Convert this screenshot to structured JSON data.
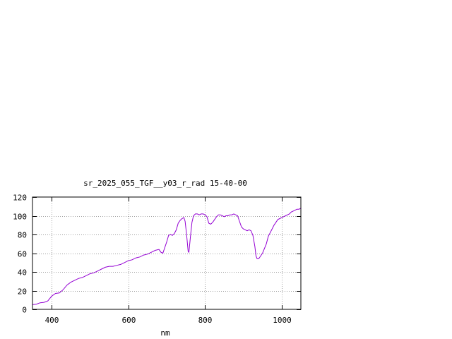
{
  "chart_data": {
    "type": "line",
    "title": "sr_2025_055_TGF__y03_r_rad 15-40-00",
    "xlabel": "nm",
    "ylabel": "",
    "xlim": [
      350,
      1050
    ],
    "ylim": [
      0,
      120
    ],
    "grid": true,
    "x_ticks": [
      400,
      600,
      800,
      1000
    ],
    "y_ticks": [
      0,
      20,
      40,
      60,
      80,
      100,
      120
    ],
    "series": [
      {
        "color": "#9400d3",
        "points": [
          [
            350,
            5
          ],
          [
            360,
            5.5
          ],
          [
            370,
            7
          ],
          [
            380,
            7.5
          ],
          [
            390,
            9
          ],
          [
            400,
            14
          ],
          [
            410,
            17
          ],
          [
            420,
            17.5
          ],
          [
            430,
            21
          ],
          [
            440,
            26
          ],
          [
            450,
            29
          ],
          [
            460,
            31
          ],
          [
            470,
            33
          ],
          [
            480,
            34
          ],
          [
            490,
            36
          ],
          [
            500,
            38
          ],
          [
            510,
            39
          ],
          [
            520,
            41
          ],
          [
            530,
            43
          ],
          [
            540,
            45
          ],
          [
            550,
            46
          ],
          [
            560,
            46
          ],
          [
            570,
            47
          ],
          [
            580,
            48
          ],
          [
            590,
            50
          ],
          [
            600,
            52
          ],
          [
            610,
            53
          ],
          [
            620,
            55
          ],
          [
            630,
            56
          ],
          [
            640,
            58
          ],
          [
            650,
            59
          ],
          [
            660,
            61
          ],
          [
            670,
            63
          ],
          [
            680,
            64
          ],
          [
            685,
            61
          ],
          [
            690,
            60
          ],
          [
            700,
            72
          ],
          [
            705,
            79
          ],
          [
            710,
            80
          ],
          [
            715,
            79
          ],
          [
            720,
            81
          ],
          [
            725,
            85
          ],
          [
            730,
            92
          ],
          [
            735,
            95
          ],
          [
            740,
            97
          ],
          [
            745,
            98
          ],
          [
            748,
            94
          ],
          [
            752,
            80
          ],
          [
            756,
            62
          ],
          [
            758,
            61
          ],
          [
            762,
            78
          ],
          [
            766,
            93
          ],
          [
            770,
            100
          ],
          [
            775,
            102
          ],
          [
            780,
            102
          ],
          [
            785,
            101
          ],
          [
            790,
            102
          ],
          [
            795,
            102
          ],
          [
            800,
            101
          ],
          [
            805,
            99
          ],
          [
            810,
            92
          ],
          [
            815,
            91
          ],
          [
            820,
            93
          ],
          [
            825,
            96
          ],
          [
            830,
            99
          ],
          [
            835,
            101
          ],
          [
            840,
            101
          ],
          [
            845,
            100
          ],
          [
            850,
            99
          ],
          [
            855,
            100
          ],
          [
            860,
            100
          ],
          [
            865,
            101
          ],
          [
            870,
            101
          ],
          [
            875,
            102
          ],
          [
            880,
            101
          ],
          [
            885,
            100
          ],
          [
            890,
            94
          ],
          [
            895,
            88
          ],
          [
            900,
            86
          ],
          [
            905,
            85
          ],
          [
            910,
            84
          ],
          [
            915,
            85
          ],
          [
            920,
            84
          ],
          [
            925,
            79
          ],
          [
            930,
            67
          ],
          [
            933,
            57
          ],
          [
            936,
            54
          ],
          [
            940,
            54
          ],
          [
            945,
            57
          ],
          [
            950,
            60
          ],
          [
            955,
            65
          ],
          [
            960,
            70
          ],
          [
            965,
            78
          ],
          [
            970,
            82
          ],
          [
            975,
            86
          ],
          [
            980,
            90
          ],
          [
            985,
            93
          ],
          [
            990,
            96
          ],
          [
            995,
            97
          ],
          [
            1000,
            98
          ],
          [
            1005,
            99
          ],
          [
            1010,
            100
          ],
          [
            1015,
            101
          ],
          [
            1020,
            102
          ],
          [
            1025,
            104
          ],
          [
            1030,
            105
          ],
          [
            1035,
            106
          ],
          [
            1040,
            107
          ],
          [
            1045,
            107
          ],
          [
            1050,
            108
          ]
        ]
      }
    ]
  }
}
